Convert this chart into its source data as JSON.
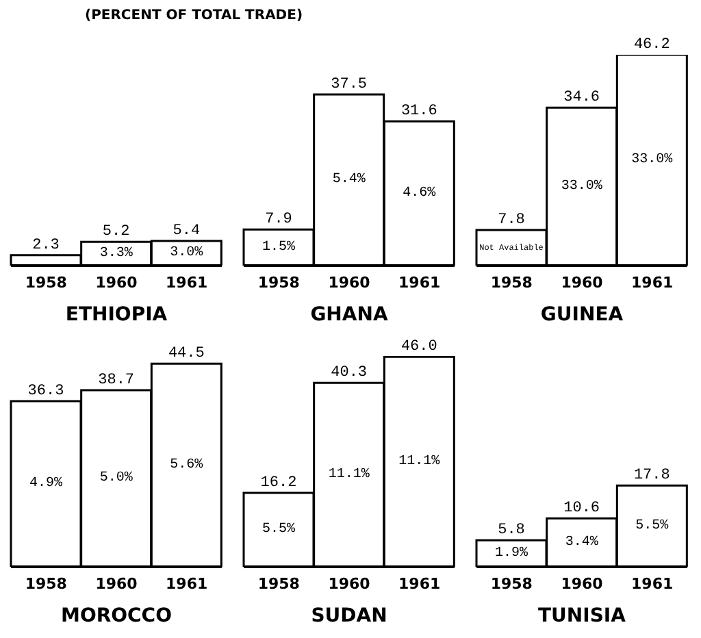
{
  "chart_data": [
    {
      "type": "bar",
      "title": "(PERCENT OF TOTAL TRADE)",
      "xlabel": "ETHIOPIA",
      "categories": [
        "1958",
        "1960",
        "1961"
      ],
      "values": [
        2.3,
        5.2,
        5.4
      ],
      "color": "#ffffff",
      "tick_labels": "x",
      "value_labels": [
        "2.3",
        "5.2",
        "5.4"
      ],
      "annotations": [
        "3.3%",
        "3.0%"
      ]
    },
    {
      "type": "bar",
      "xlabel": "GHANA",
      "categories": [
        "1958",
        "1960",
        "1961"
      ],
      "values": [
        7.9,
        37.5,
        31.6
      ],
      "color": "#ffffff",
      "tick_labels": "x",
      "value_labels": [
        "7.9",
        "37.5",
        "31.6"
      ],
      "annotations": [
        "1.5%",
        "5.4%",
        "4.6%"
      ]
    },
    {
      "type": "bar",
      "xlabel": "GUINEA",
      "categories": [
        "1958",
        "1960",
        "1961"
      ],
      "values": [
        7.8,
        34.6,
        46.2
      ],
      "color": "#ffffff",
      "tick_labels": "x",
      "value_labels": [
        "7.8",
        "34.6",
        "46.2"
      ],
      "annotations": [
        "Not Available",
        "33.0%",
        "33.0%"
      ]
    },
    {
      "type": "bar",
      "xlabel": "MOROCCO",
      "categories": [
        "1958",
        "1960",
        "1961"
      ],
      "values": [
        36.3,
        38.7,
        44.5
      ],
      "color": "#ffffff",
      "tick_labels": "x",
      "value_labels": [
        "36.3",
        "38.7",
        "44.5"
      ],
      "annotations": [
        "4.9%",
        "5.0%",
        "5.6%"
      ]
    },
    {
      "type": "bar",
      "xlabel": "SUDAN",
      "categories": [
        "1958",
        "1960",
        "1961"
      ],
      "values": [
        16.2,
        40.3,
        46.0
      ],
      "color": "#ffffff",
      "tick_labels": "x",
      "value_labels": [
        "16.2",
        "40.3",
        "46.0"
      ],
      "annotations": [
        "5.5%",
        "11.1%",
        "11.1%"
      ]
    },
    {
      "type": "bar",
      "xlabel": "TUNISIA",
      "categories": [
        "1958",
        "1960",
        "1961"
      ],
      "values": [
        5.8,
        10.6,
        17.8
      ],
      "color": "#ffffff",
      "tick_labels": "x",
      "value_labels": [
        "5.8",
        "10.6",
        "17.8"
      ],
      "annotations": [
        "1.9%",
        "3.4%",
        "5.5%"
      ]
    }
  ]
}
